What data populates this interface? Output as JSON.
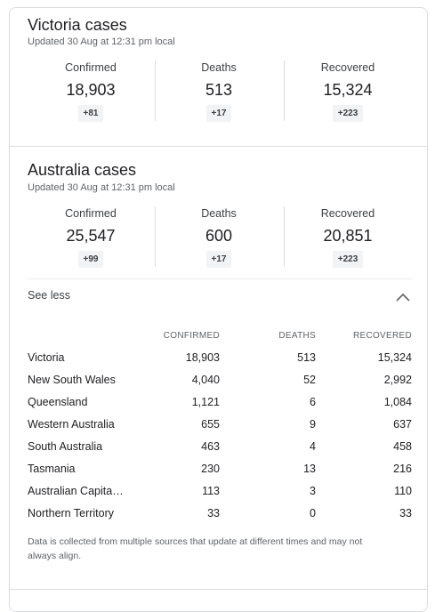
{
  "victoria": {
    "title": "Victoria cases",
    "updated": "Updated 30 Aug at 12:31 pm local",
    "stats": [
      {
        "label": "Confirmed",
        "value": "18,903",
        "delta": "+81"
      },
      {
        "label": "Deaths",
        "value": "513",
        "delta": "+17"
      },
      {
        "label": "Recovered",
        "value": "15,324",
        "delta": "+223"
      }
    ]
  },
  "australia": {
    "title": "Australia cases",
    "updated": "Updated 30 Aug at 12:31 pm local",
    "stats": [
      {
        "label": "Confirmed",
        "value": "25,547",
        "delta": "+99"
      },
      {
        "label": "Deaths",
        "value": "600",
        "delta": "+17"
      },
      {
        "label": "Recovered",
        "value": "20,851",
        "delta": "+223"
      }
    ]
  },
  "toggle": {
    "label": "See less",
    "icon": "chevron-up-icon"
  },
  "table": {
    "headers": {
      "confirmed": "CONFIRMED",
      "deaths": "DEATHS",
      "recovered": "RECOVERED"
    },
    "rows": [
      {
        "name": "Victoria",
        "confirmed": "18,903",
        "deaths": "513",
        "recovered": "15,324"
      },
      {
        "name": "New South Wales",
        "confirmed": "4,040",
        "deaths": "52",
        "recovered": "2,992"
      },
      {
        "name": "Queensland",
        "confirmed": "1,121",
        "deaths": "6",
        "recovered": "1,084"
      },
      {
        "name": "Western Australia",
        "confirmed": "655",
        "deaths": "9",
        "recovered": "637"
      },
      {
        "name": "South Australia",
        "confirmed": "463",
        "deaths": "4",
        "recovered": "458"
      },
      {
        "name": "Tasmania",
        "confirmed": "230",
        "deaths": "13",
        "recovered": "216"
      },
      {
        "name": "Australian Capita…",
        "confirmed": "113",
        "deaths": "3",
        "recovered": "110"
      },
      {
        "name": "Northern Territory",
        "confirmed": "33",
        "deaths": "0",
        "recovered": "33"
      }
    ]
  },
  "footnote": "Data is collected from multiple sources that update at different times and may not always align."
}
